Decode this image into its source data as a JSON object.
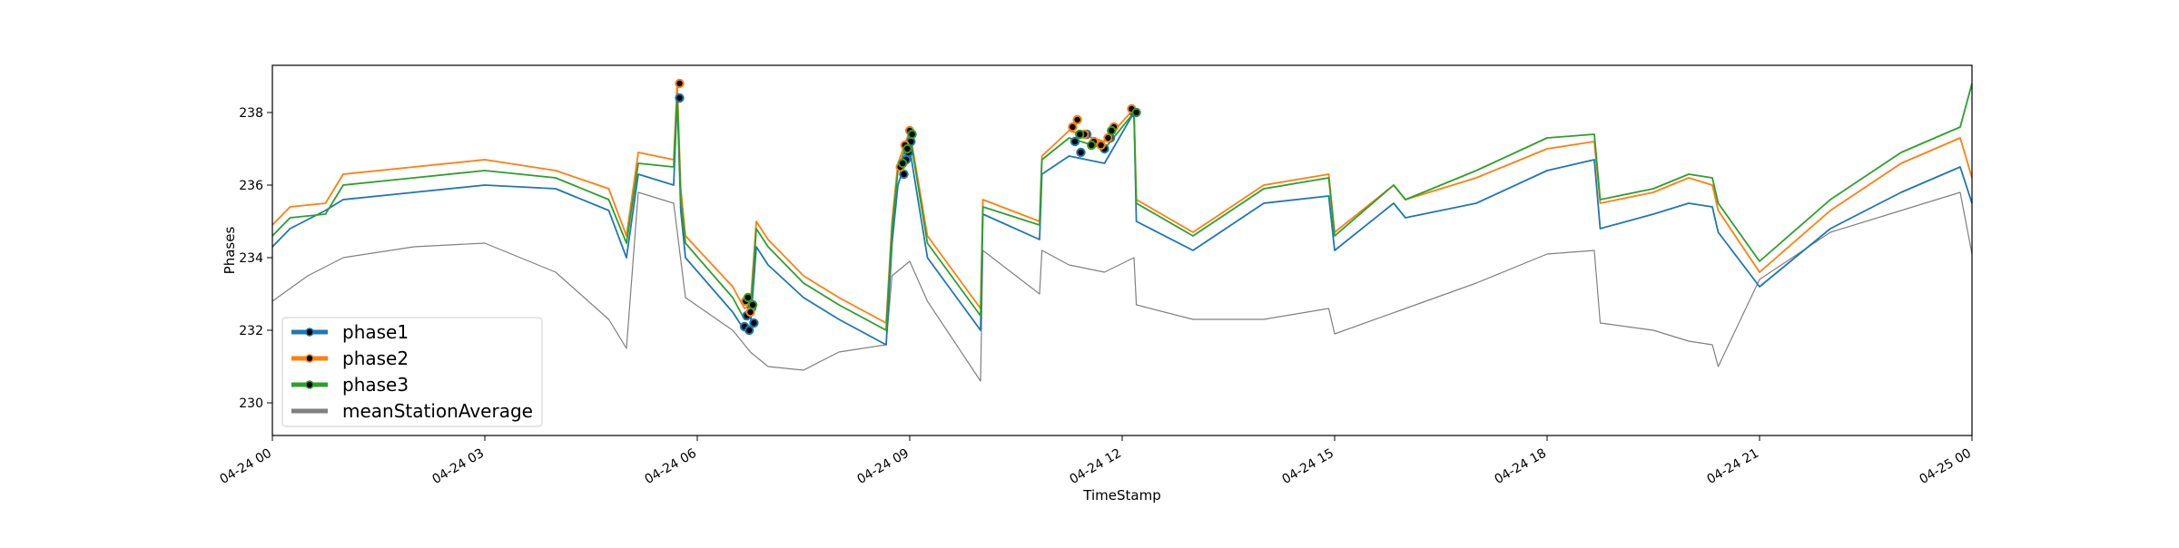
{
  "chart_data": {
    "type": "line",
    "xlabel": "TimeStamp",
    "ylabel": "Phases",
    "x_range": [
      "2023-04-24T00:00",
      "2023-04-25T00:00"
    ],
    "ylim": [
      229.1,
      239.3
    ],
    "x_ticks": [
      {
        "x": "2023-04-24T00:00",
        "label": "04-24 00"
      },
      {
        "x": "2023-04-24T03:00",
        "label": "04-24 03"
      },
      {
        "x": "2023-04-24T06:00",
        "label": "04-24 06"
      },
      {
        "x": "2023-04-24T09:00",
        "label": "04-24 09"
      },
      {
        "x": "2023-04-24T12:00",
        "label": "04-24 12"
      },
      {
        "x": "2023-04-24T15:00",
        "label": "04-24 15"
      },
      {
        "x": "2023-04-24T18:00",
        "label": "04-24 18"
      },
      {
        "x": "2023-04-24T21:00",
        "label": "04-24 21"
      },
      {
        "x": "2023-04-25T00:00",
        "label": "04-25 00"
      }
    ],
    "y_ticks": [
      230,
      232,
      234,
      236,
      238
    ],
    "grid": false,
    "legend_position": "lower-left",
    "series": [
      {
        "name": "phase1",
        "color": "#1f77b4",
        "x": [
          "2023-04-24T00:00",
          "2023-04-24T00:15",
          "2023-04-24T00:45",
          "2023-04-24T01:00",
          "2023-04-24T02:00",
          "2023-04-24T03:00",
          "2023-04-24T04:00",
          "2023-04-24T04:45",
          "2023-04-24T05:00",
          "2023-04-24T05:10",
          "2023-04-24T05:40",
          "2023-04-24T05:43",
          "2023-04-24T05:46",
          "2023-04-24T05:50",
          "2023-04-24T06:30",
          "2023-04-24T06:40",
          "2023-04-24T06:45",
          "2023-04-24T06:50",
          "2023-04-24T07:00",
          "2023-04-24T07:30",
          "2023-04-24T08:00",
          "2023-04-24T08:40",
          "2023-04-24T08:45",
          "2023-04-24T08:50",
          "2023-04-24T09:00",
          "2023-04-24T09:15",
          "2023-04-24T10:00",
          "2023-04-24T10:02",
          "2023-04-24T10:50",
          "2023-04-24T10:52",
          "2023-04-24T11:15",
          "2023-04-24T11:45",
          "2023-04-24T12:10",
          "2023-04-24T12:12",
          "2023-04-24T13:00",
          "2023-04-24T14:00",
          "2023-04-24T14:55",
          "2023-04-24T15:00",
          "2023-04-24T15:50",
          "2023-04-24T16:00",
          "2023-04-24T17:00",
          "2023-04-24T18:00",
          "2023-04-24T18:40",
          "2023-04-24T18:45",
          "2023-04-24T19:30",
          "2023-04-24T20:00",
          "2023-04-24T20:20",
          "2023-04-24T20:25",
          "2023-04-24T21:00",
          "2023-04-24T22:00",
          "2023-04-24T23:00",
          "2023-04-24T23:50",
          "2023-04-25T00:00"
        ],
        "values": [
          234.3,
          234.8,
          235.3,
          235.6,
          235.8,
          236.0,
          235.9,
          235.3,
          234.0,
          236.3,
          236.0,
          238.4,
          235.3,
          234.0,
          232.5,
          232.0,
          232.1,
          234.3,
          233.8,
          232.9,
          232.3,
          231.6,
          234.4,
          236.0,
          237.0,
          234.0,
          232.0,
          235.2,
          234.5,
          236.3,
          236.8,
          236.6,
          238.0,
          235.0,
          234.2,
          235.5,
          235.7,
          234.2,
          235.5,
          235.1,
          235.5,
          236.4,
          236.7,
          234.8,
          235.2,
          235.5,
          235.4,
          234.7,
          233.2,
          234.8,
          235.8,
          236.5,
          235.5
        ]
      },
      {
        "name": "phase2",
        "color": "#ff7f0e",
        "x": [
          "2023-04-24T00:00",
          "2023-04-24T00:15",
          "2023-04-24T00:45",
          "2023-04-24T01:00",
          "2023-04-24T02:00",
          "2023-04-24T03:00",
          "2023-04-24T04:00",
          "2023-04-24T04:45",
          "2023-04-24T05:00",
          "2023-04-24T05:10",
          "2023-04-24T05:40",
          "2023-04-24T05:43",
          "2023-04-24T05:46",
          "2023-04-24T05:50",
          "2023-04-24T06:30",
          "2023-04-24T06:40",
          "2023-04-24T06:45",
          "2023-04-24T06:50",
          "2023-04-24T07:00",
          "2023-04-24T07:30",
          "2023-04-24T08:00",
          "2023-04-24T08:40",
          "2023-04-24T08:45",
          "2023-04-24T08:50",
          "2023-04-24T09:00",
          "2023-04-24T09:15",
          "2023-04-24T10:00",
          "2023-04-24T10:02",
          "2023-04-24T10:50",
          "2023-04-24T10:52",
          "2023-04-24T11:15",
          "2023-04-24T11:45",
          "2023-04-24T12:10",
          "2023-04-24T12:12",
          "2023-04-24T13:00",
          "2023-04-24T14:00",
          "2023-04-24T14:55",
          "2023-04-24T15:00",
          "2023-04-24T15:50",
          "2023-04-24T16:00",
          "2023-04-24T17:00",
          "2023-04-24T18:00",
          "2023-04-24T18:40",
          "2023-04-24T18:45",
          "2023-04-24T19:30",
          "2023-04-24T20:00",
          "2023-04-24T20:20",
          "2023-04-24T20:25",
          "2023-04-24T21:00",
          "2023-04-24T22:00",
          "2023-04-24T23:00",
          "2023-04-24T23:50",
          "2023-04-25T00:00"
        ],
        "values": [
          234.9,
          235.4,
          235.5,
          236.3,
          236.5,
          236.7,
          236.4,
          235.9,
          234.6,
          236.9,
          236.7,
          238.8,
          235.9,
          234.6,
          233.2,
          232.6,
          232.7,
          235.0,
          234.5,
          233.5,
          232.9,
          232.2,
          235.0,
          236.6,
          237.5,
          234.6,
          232.6,
          235.6,
          235.0,
          236.8,
          237.5,
          237.2,
          238.1,
          235.6,
          234.7,
          236.0,
          236.3,
          234.7,
          236.0,
          235.6,
          236.2,
          237.0,
          237.2,
          235.5,
          235.8,
          236.2,
          236.0,
          235.3,
          233.6,
          235.3,
          236.6,
          237.3,
          236.2
        ]
      },
      {
        "name": "phase3",
        "color": "#2ca02c",
        "x": [
          "2023-04-24T00:00",
          "2023-04-24T00:15",
          "2023-04-24T00:45",
          "2023-04-24T01:00",
          "2023-04-24T02:00",
          "2023-04-24T03:00",
          "2023-04-24T04:00",
          "2023-04-24T04:45",
          "2023-04-24T05:00",
          "2023-04-24T05:10",
          "2023-04-24T05:40",
          "2023-04-24T05:43",
          "2023-04-24T05:46",
          "2023-04-24T05:50",
          "2023-04-24T06:30",
          "2023-04-24T06:40",
          "2023-04-24T06:45",
          "2023-04-24T06:50",
          "2023-04-24T07:00",
          "2023-04-24T07:30",
          "2023-04-24T08:00",
          "2023-04-24T08:40",
          "2023-04-24T08:45",
          "2023-04-24T08:50",
          "2023-04-24T09:00",
          "2023-04-24T09:15",
          "2023-04-24T10:00",
          "2023-04-24T10:02",
          "2023-04-24T10:50",
          "2023-04-24T10:52",
          "2023-04-24T11:15",
          "2023-04-24T11:45",
          "2023-04-24T12:10",
          "2023-04-24T12:12",
          "2023-04-24T13:00",
          "2023-04-24T14:00",
          "2023-04-24T14:55",
          "2023-04-24T15:00",
          "2023-04-24T15:50",
          "2023-04-24T16:00",
          "2023-04-24T17:00",
          "2023-04-24T18:00",
          "2023-04-24T18:40",
          "2023-04-24T18:45",
          "2023-04-24T19:30",
          "2023-04-24T20:00",
          "2023-04-24T20:20",
          "2023-04-24T20:25",
          "2023-04-24T21:00",
          "2023-04-24T22:00",
          "2023-04-24T23:00",
          "2023-04-24T23:50",
          "2023-04-25T00:00"
        ],
        "values": [
          234.6,
          235.1,
          235.2,
          236.0,
          236.2,
          236.4,
          236.2,
          235.6,
          234.4,
          236.6,
          236.5,
          238.5,
          235.6,
          234.4,
          232.9,
          232.3,
          232.4,
          234.8,
          234.3,
          233.3,
          232.7,
          232.0,
          234.8,
          236.4,
          237.4,
          234.4,
          232.4,
          235.4,
          234.9,
          236.7,
          237.3,
          237.0,
          238.0,
          235.5,
          234.6,
          235.9,
          236.2,
          234.6,
          236.0,
          235.6,
          236.4,
          237.3,
          237.4,
          235.6,
          235.9,
          236.3,
          236.2,
          235.5,
          233.9,
          235.6,
          236.9,
          237.6,
          238.8
        ]
      },
      {
        "name": "meanStationAverage",
        "color": "#808080",
        "x": [
          "2023-04-24T00:00",
          "2023-04-24T00:30",
          "2023-04-24T01:00",
          "2023-04-24T02:00",
          "2023-04-24T03:00",
          "2023-04-24T04:00",
          "2023-04-24T04:45",
          "2023-04-24T05:00",
          "2023-04-24T05:10",
          "2023-04-24T05:40",
          "2023-04-24T05:50",
          "2023-04-24T06:30",
          "2023-04-24T06:45",
          "2023-04-24T07:00",
          "2023-04-24T07:30",
          "2023-04-24T08:00",
          "2023-04-24T08:40",
          "2023-04-24T08:45",
          "2023-04-24T09:00",
          "2023-04-24T09:15",
          "2023-04-24T10:00",
          "2023-04-24T10:02",
          "2023-04-24T10:50",
          "2023-04-24T10:52",
          "2023-04-24T11:15",
          "2023-04-24T11:45",
          "2023-04-24T12:10",
          "2023-04-24T12:12",
          "2023-04-24T13:00",
          "2023-04-24T14:00",
          "2023-04-24T14:55",
          "2023-04-24T15:00",
          "2023-04-24T16:00",
          "2023-04-24T17:00",
          "2023-04-24T18:00",
          "2023-04-24T18:40",
          "2023-04-24T18:45",
          "2023-04-24T19:30",
          "2023-04-24T20:00",
          "2023-04-24T20:20",
          "2023-04-24T20:25",
          "2023-04-24T21:00",
          "2023-04-24T22:00",
          "2023-04-24T23:00",
          "2023-04-24T23:50",
          "2023-04-25T00:00"
        ],
        "values": [
          232.8,
          233.5,
          234.0,
          234.3,
          234.4,
          233.6,
          232.3,
          231.5,
          235.8,
          235.5,
          232.9,
          232.0,
          231.4,
          231.0,
          230.9,
          231.4,
          231.6,
          233.5,
          233.9,
          232.8,
          230.6,
          234.2,
          233.0,
          234.2,
          233.8,
          233.6,
          234.0,
          232.7,
          232.3,
          232.3,
          232.6,
          231.9,
          232.6,
          233.3,
          234.1,
          234.2,
          232.2,
          232.0,
          231.7,
          231.6,
          231.0,
          233.4,
          234.7,
          235.3,
          235.8,
          234.1
        ]
      }
    ],
    "markers": [
      {
        "series": "phase1",
        "x": [
          "2023-04-24T05:45",
          "2023-04-24T06:40",
          "2023-04-24T06:42",
          "2023-04-24T06:44",
          "2023-04-24T06:46",
          "2023-04-24T06:48",
          "2023-04-24T08:55",
          "2023-04-24T08:57",
          "2023-04-24T08:59",
          "2023-04-24T09:01",
          "2023-04-24T11:20",
          "2023-04-24T11:25",
          "2023-04-24T11:30",
          "2023-04-24T11:45",
          "2023-04-24T11:50",
          "2023-04-24T12:10"
        ],
        "values": [
          238.4,
          232.1,
          232.4,
          232.0,
          232.6,
          232.2,
          236.3,
          236.7,
          236.9,
          237.2,
          237.2,
          236.9,
          237.4,
          237.0,
          237.3,
          238.0
        ]
      },
      {
        "series": "phase2",
        "x": [
          "2023-04-24T05:45",
          "2023-04-24T06:41",
          "2023-04-24T06:45",
          "2023-04-24T08:52",
          "2023-04-24T08:56",
          "2023-04-24T09:00",
          "2023-04-24T11:18",
          "2023-04-24T11:22",
          "2023-04-24T11:28",
          "2023-04-24T11:36",
          "2023-04-24T11:42",
          "2023-04-24T11:48",
          "2023-04-24T11:53",
          "2023-04-24T12:08"
        ],
        "values": [
          238.8,
          232.8,
          232.5,
          236.5,
          237.1,
          237.5,
          237.6,
          237.8,
          237.4,
          237.2,
          237.1,
          237.3,
          237.6,
          238.1
        ]
      },
      {
        "series": "phase3",
        "x": [
          "2023-04-24T06:43",
          "2023-04-24T06:47",
          "2023-04-24T08:54",
          "2023-04-24T08:58",
          "2023-04-24T09:02",
          "2023-04-24T11:24",
          "2023-04-24T11:34",
          "2023-04-24T11:51",
          "2023-04-24T12:12"
        ],
        "values": [
          232.9,
          232.7,
          236.6,
          237.0,
          237.4,
          237.4,
          237.1,
          237.5,
          238.0
        ]
      }
    ]
  }
}
